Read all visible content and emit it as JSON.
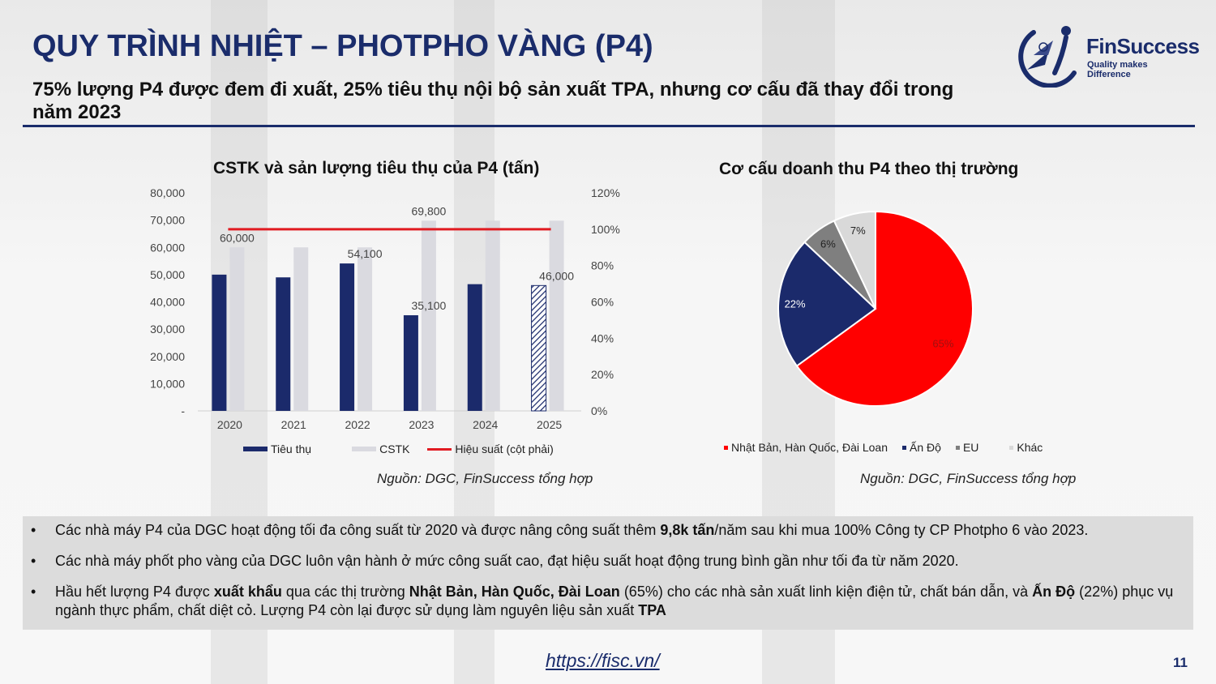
{
  "header": {
    "title": "QUY TRÌNH NHIỆT – PHOTPHO VÀNG (P4)",
    "subtitle": "75% lượng P4 được đem đi xuất, 25% tiêu thụ nội bộ sản xuất TPA, nhưng cơ cấu đã thay đổi trong năm 2023"
  },
  "logo": {
    "name": "FinSuccess",
    "tagline": "Quality makes Difference"
  },
  "colors": {
    "navy": "#1a2c6b",
    "bar_navy": "#1b2a6b",
    "light_gray": "#dadae0",
    "red": "#e11b22",
    "pie_gray": "#7f7f7f",
    "pie_light": "#d9d9d9"
  },
  "chart_data": [
    {
      "type": "bar",
      "title": "CSTK và sản lượng tiêu thụ của P4 (tấn)",
      "categories": [
        "2020",
        "2021",
        "2022",
        "2023",
        "2024",
        "2025"
      ],
      "series": [
        {
          "name": "Tiêu thụ",
          "values": [
            50000,
            49000,
            54100,
            35100,
            46500,
            46000
          ],
          "color": "#1b2a6b",
          "hatched_last": true
        },
        {
          "name": "CSTK",
          "values": [
            60000,
            60000,
            60000,
            69800,
            69800,
            69800
          ],
          "color": "#dadae0"
        },
        {
          "name": "Hiệu suất (cột phải)",
          "type": "line",
          "axis": "right",
          "values": [
            1.0,
            1.0,
            1.0,
            1.0,
            1.0,
            1.0
          ],
          "color": "#e11b22"
        }
      ],
      "data_labels": [
        {
          "category": "2020",
          "text": "60,000",
          "value": 60000
        },
        {
          "category": "2022",
          "text": "54,100",
          "value": 54100
        },
        {
          "category": "2023",
          "text": "35,100",
          "value": 35100
        },
        {
          "category": "2023",
          "text": "69,800",
          "value": 69800
        },
        {
          "category": "2025",
          "text": "46,000",
          "value": 46000
        }
      ],
      "y_left": {
        "ylim": [
          0,
          80000
        ],
        "ticks": [
          "-",
          "10,000",
          "20,000",
          "30,000",
          "40,000",
          "50,000",
          "60,000",
          "70,000",
          "80,000"
        ]
      },
      "y_right": {
        "ylim": [
          0,
          1.2
        ],
        "ticks": [
          "0%",
          "20%",
          "40%",
          "60%",
          "80%",
          "100%",
          "120%"
        ]
      },
      "grid": false,
      "legend_position": "bottom"
    },
    {
      "type": "pie",
      "title": "Cơ cấu doanh thu P4 theo thị trường",
      "slices": [
        {
          "name": "Nhật Bản, Hàn Quốc, Đài Loan",
          "value": 65,
          "label": "65%",
          "color": "#ff0000"
        },
        {
          "name": "Ấn Độ",
          "value": 22,
          "label": "22%",
          "color": "#1b2a6b"
        },
        {
          "name": "EU",
          "value": 6,
          "label": "6%",
          "color": "#7f7f7f"
        },
        {
          "name": "Khác",
          "value": 7,
          "label": "7%",
          "color": "#d9d9d9"
        }
      ],
      "legend_position": "bottom"
    }
  ],
  "sources": {
    "left": "Nguồn: DGC, FinSuccess tổng hợp",
    "right": "Nguồn: DGC, FinSuccess tổng hợp"
  },
  "notes": [
    [
      {
        "t": "Các nhà máy P4 của DGC hoạt động tối đa công suất từ 2020 và được nâng công suất thêm "
      },
      {
        "t": "9,8k tấn",
        "b": true
      },
      {
        "t": "/năm sau khi mua 100% Công ty CP Photpho 6 vào 2023."
      }
    ],
    [
      {
        "t": "Các nhà máy phốt pho vàng của DGC luôn vận hành ở mức công suất cao, đạt hiệu suất hoạt động trung bình gần như tối đa từ năm 2020."
      }
    ],
    [
      {
        "t": "Hầu hết lượng P4 được "
      },
      {
        "t": "xuất khẩu",
        "b": true
      },
      {
        "t": " qua các thị trường "
      },
      {
        "t": "Nhật Bản, Hàn Quốc, Đài Loan",
        "b": true
      },
      {
        "t": " (65%) cho các nhà sản xuất linh kiện điện tử, chất bán dẫn, và "
      },
      {
        "t": "Ấn Độ",
        "b": true
      },
      {
        "t": " (22%) phục vụ ngành thực phẩm, chất diệt cỏ. Lượng P4 còn lại được sử dụng làm nguyên liệu sản xuất "
      },
      {
        "t": "TPA",
        "b": true
      }
    ]
  ],
  "note_bullet": "•",
  "footer": {
    "link": "https://fisc.vn/",
    "page": "11"
  }
}
